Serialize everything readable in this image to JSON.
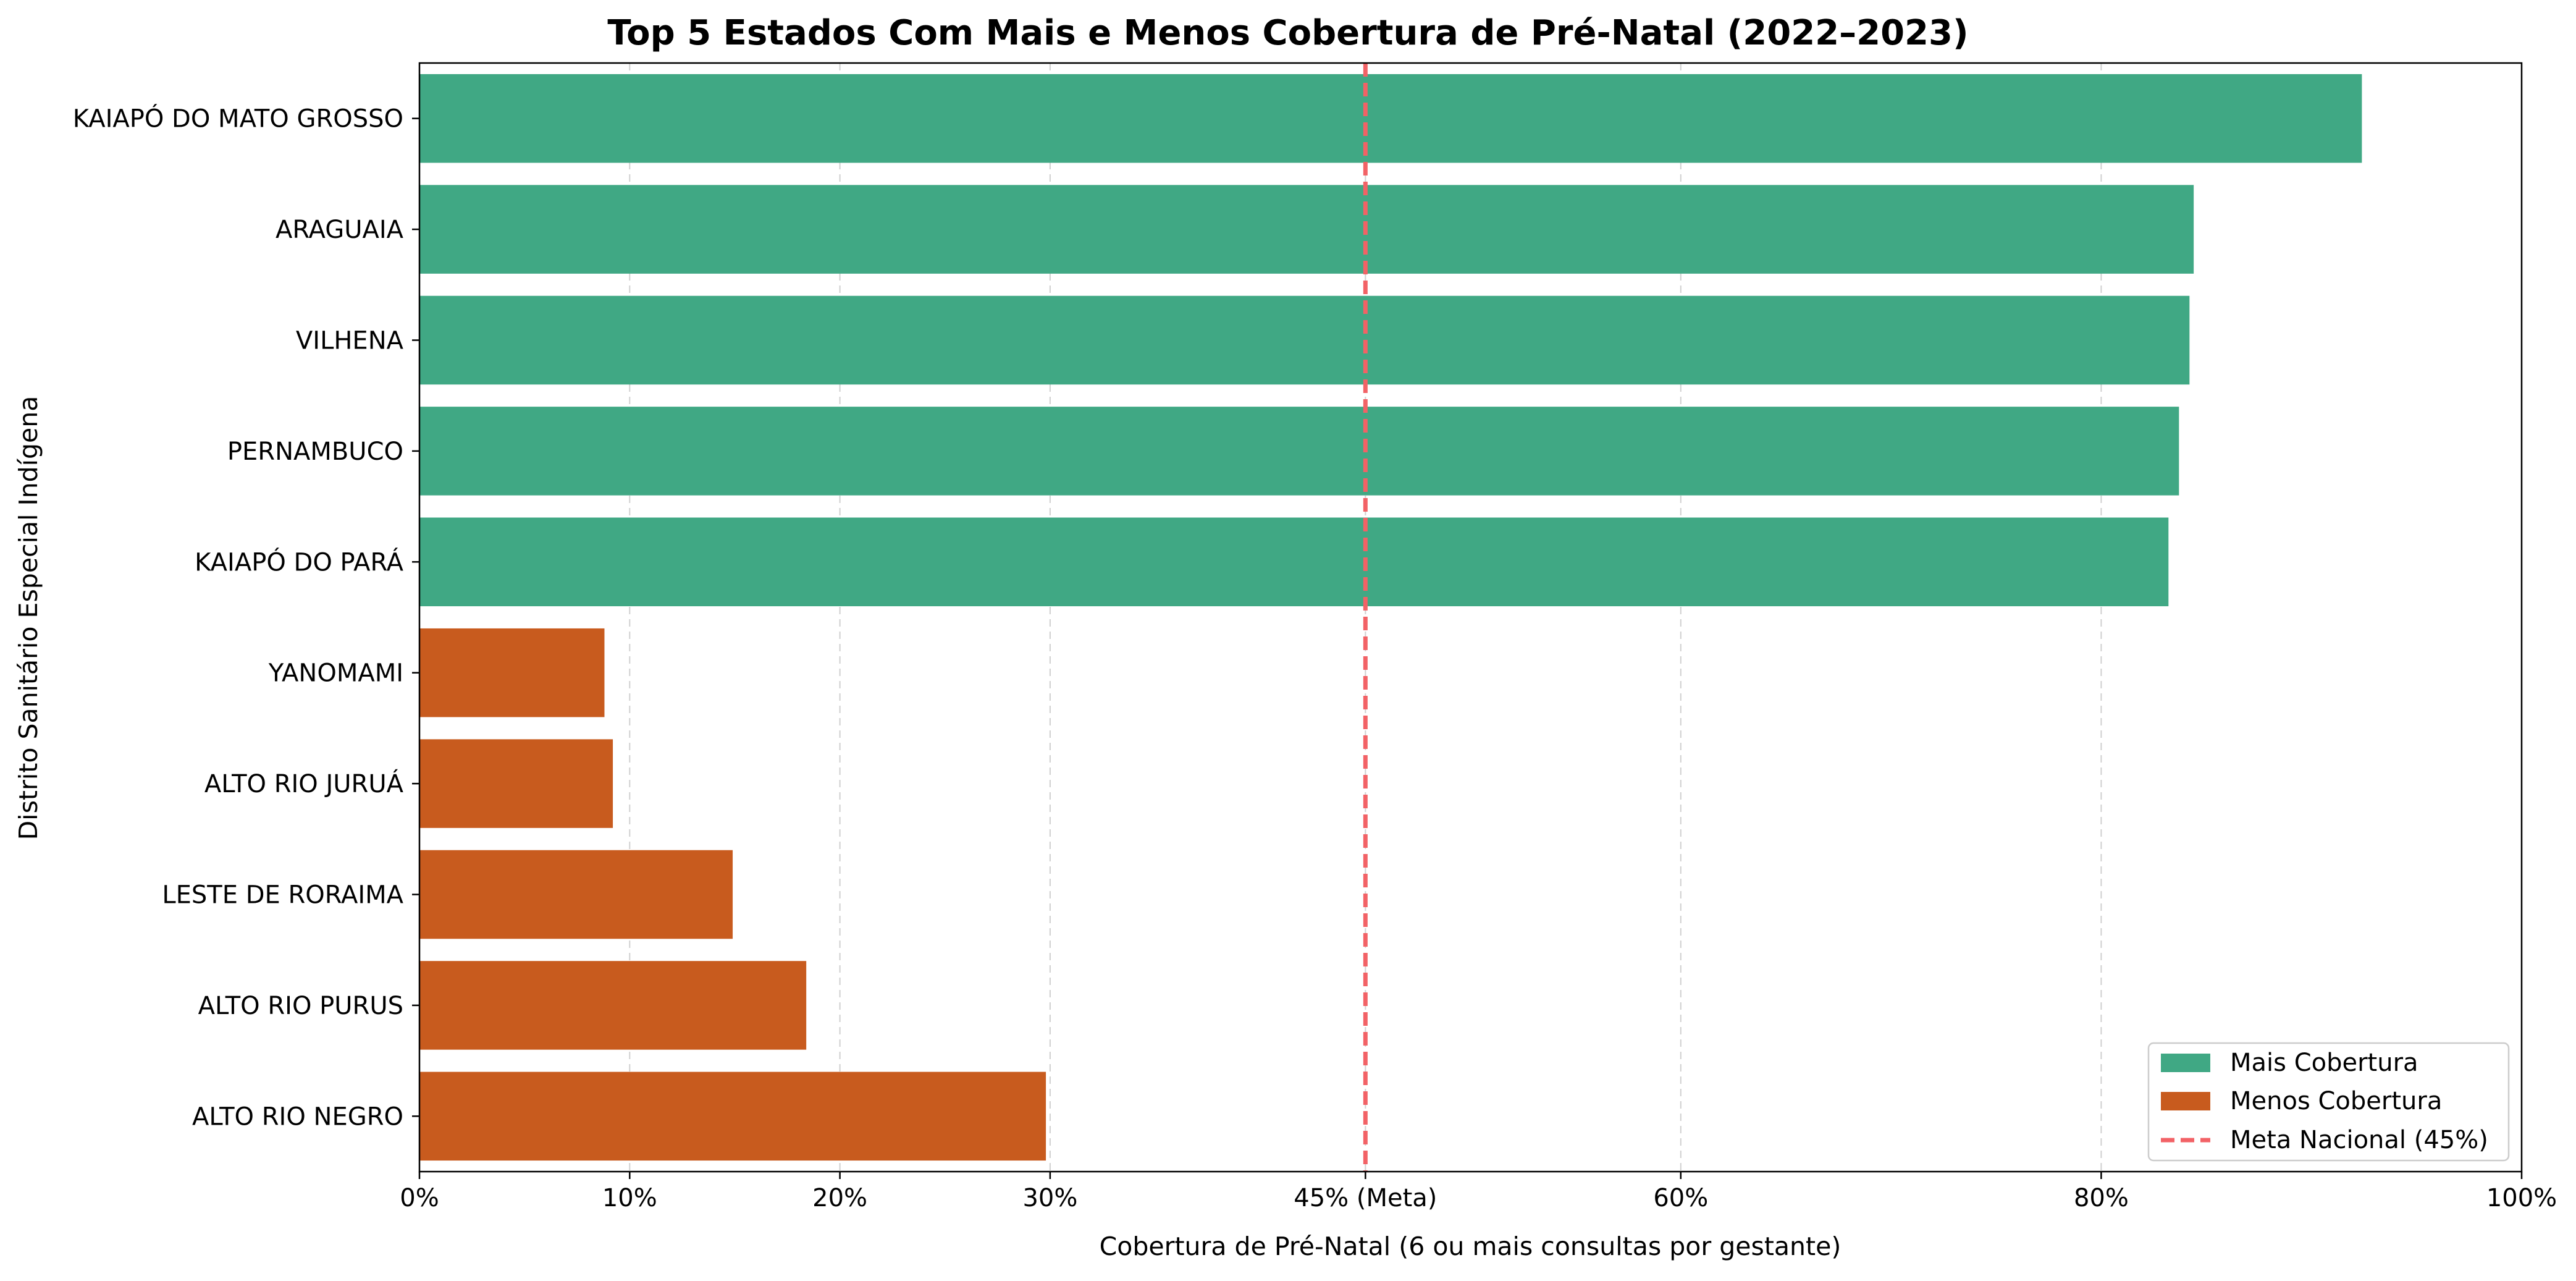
{
  "chart_data": {
    "type": "bar",
    "orientation": "horizontal",
    "title": "Top 5 Estados Com Mais e Menos Cobertura de Pré-Natal (2022–2023)",
    "xlabel": "Cobertura de Pré-Natal (6 ou mais consultas por gestante)",
    "ylabel": "Distrito Sanitário Especial Indígena",
    "xlim": [
      0,
      100
    ],
    "x_ticks": [
      {
        "value": 0,
        "label": "0%"
      },
      {
        "value": 10,
        "label": "10%"
      },
      {
        "value": 20,
        "label": "20%"
      },
      {
        "value": 30,
        "label": "30%"
      },
      {
        "value": 45,
        "label": "45% (Meta)"
      },
      {
        "value": 60,
        "label": "60%"
      },
      {
        "value": 80,
        "label": "80%"
      },
      {
        "value": 100,
        "label": "100%"
      }
    ],
    "grid": "vertical dashed",
    "categories": [
      "KAIAPÓ DO MATO GROSSO",
      "ARAGUAIA",
      "VILHENA",
      "PERNAMBUCO",
      "KAIAPÓ DO PARÁ",
      "YANOMAMI",
      "ALTO RIO JURUÁ",
      "LESTE DE RORAIMA",
      "ALTO RIO PURUS",
      "ALTO RIO NEGRO"
    ],
    "values": [
      92.4,
      84.4,
      84.2,
      83.7,
      83.2,
      8.8,
      9.2,
      14.9,
      18.4,
      29.8
    ],
    "groups": [
      "mais",
      "mais",
      "mais",
      "mais",
      "mais",
      "menos",
      "menos",
      "menos",
      "menos",
      "menos"
    ],
    "series": [
      {
        "key": "mais",
        "name": "Mais Cobertura",
        "color": "#40a884"
      },
      {
        "key": "menos",
        "name": "Menos Cobertura",
        "color": "#c85b1e"
      }
    ],
    "reference_line": {
      "value": 45,
      "name": "Meta Nacional (45%)",
      "color": "#f26266",
      "style": "dashed"
    },
    "legend_position": "lower-right"
  }
}
